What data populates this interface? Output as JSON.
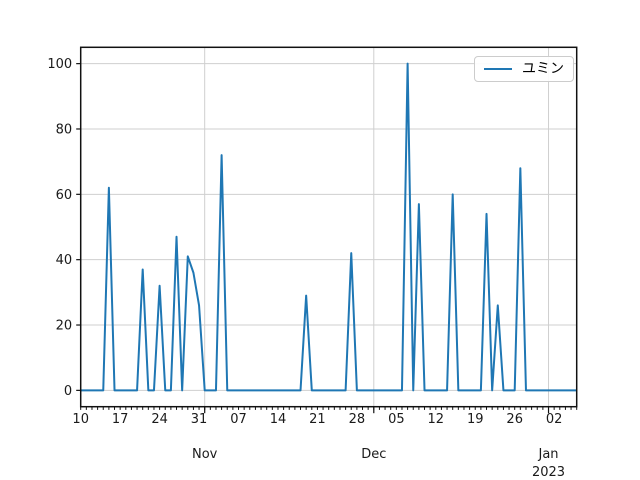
{
  "figure": {
    "background": "#ffffff"
  },
  "chart_data": {
    "type": "line",
    "title": "",
    "xlabel": "",
    "ylabel": "",
    "grid": true,
    "legend": {
      "position": "upper right",
      "entries": [
        {
          "label": "ユミン",
          "color": "#1f77b4"
        }
      ]
    },
    "line_color": "#1f77b4",
    "line_width": 2,
    "grid_color": "#cfcfcf",
    "spine_color": "#111111",
    "tick_label_color": "#1a1a1a",
    "x_start_date": "2022-10-10",
    "x_end_date": "2023-01-06",
    "x_frequency": "daily",
    "ylim": [
      -5,
      105
    ],
    "y_ticks": [
      0,
      20,
      40,
      60,
      80,
      100
    ],
    "x_week_ticks": [
      {
        "day_offset": 0,
        "label": "10"
      },
      {
        "day_offset": 7,
        "label": "17"
      },
      {
        "day_offset": 14,
        "label": "24"
      },
      {
        "day_offset": 21,
        "label": "31"
      },
      {
        "day_offset": 28,
        "label": "07"
      },
      {
        "day_offset": 35,
        "label": "14"
      },
      {
        "day_offset": 42,
        "label": "21"
      },
      {
        "day_offset": 49,
        "label": "28"
      },
      {
        "day_offset": 56,
        "label": "05"
      },
      {
        "day_offset": 63,
        "label": "12"
      },
      {
        "day_offset": 70,
        "label": "19"
      },
      {
        "day_offset": 77,
        "label": "26"
      },
      {
        "day_offset": 84,
        "label": "02"
      }
    ],
    "x_month_ticks": [
      {
        "day_offset": 22,
        "label": "Nov",
        "year_label": ""
      },
      {
        "day_offset": 52,
        "label": "Dec",
        "year_label": ""
      },
      {
        "day_offset": 83,
        "label": "Jan",
        "year_label": "2023"
      }
    ],
    "values_daily": [
      0,
      0,
      0,
      0,
      0,
      62,
      0,
      0,
      0,
      0,
      0,
      37,
      0,
      0,
      32,
      0,
      0,
      47,
      0,
      41,
      36,
      26,
      0,
      0,
      0,
      72,
      0,
      0,
      0,
      0,
      0,
      0,
      0,
      0,
      0,
      0,
      0,
      0,
      0,
      0,
      29,
      0,
      0,
      0,
      0,
      0,
      0,
      0,
      42,
      0,
      0,
      0,
      0,
      0,
      0,
      0,
      0,
      0,
      100,
      0,
      57,
      0,
      0,
      0,
      0,
      0,
      60,
      0,
      0,
      0,
      0,
      0,
      54,
      0,
      26,
      0,
      0,
      0,
      68,
      0,
      0,
      0,
      0,
      0,
      0,
      0,
      0,
      0,
      0
    ],
    "nonzero_points": [
      {
        "date": "2022-10-15",
        "value": 62
      },
      {
        "date": "2022-10-21",
        "value": 37
      },
      {
        "date": "2022-10-24",
        "value": 32
      },
      {
        "date": "2022-10-27",
        "value": 47
      },
      {
        "date": "2022-10-29",
        "value": 41
      },
      {
        "date": "2022-10-30",
        "value": 36
      },
      {
        "date": "2022-10-31",
        "value": 26
      },
      {
        "date": "2022-11-04",
        "value": 72
      },
      {
        "date": "2022-11-19",
        "value": 29
      },
      {
        "date": "2022-11-27",
        "value": 42
      },
      {
        "date": "2022-12-07",
        "value": 100
      },
      {
        "date": "2022-12-09",
        "value": 57
      },
      {
        "date": "2022-12-15",
        "value": 60
      },
      {
        "date": "2022-12-21",
        "value": 54
      },
      {
        "date": "2022-12-23",
        "value": 26
      },
      {
        "date": "2022-12-27",
        "value": 68
      }
    ]
  }
}
